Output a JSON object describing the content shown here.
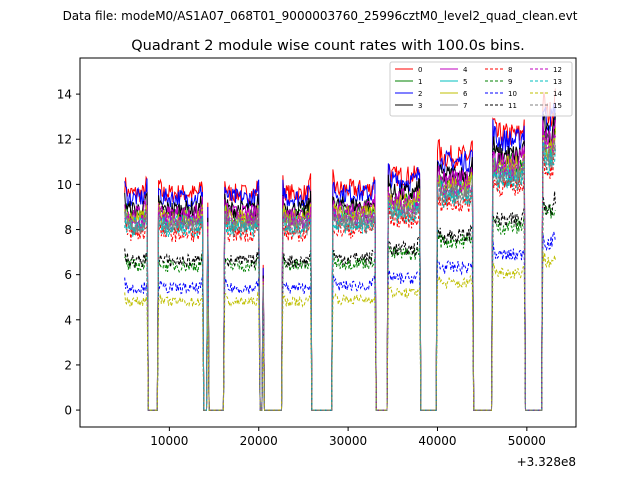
{
  "chart_data": {
    "type": "line",
    "suptitle": "Data file: modeM0/AS1A07_068T01_9000003760_25996cztM0_level2_quad_clean.evt",
    "title": "Quadrant 2 module wise count rates with 100.0s bins.",
    "xlabel": "",
    "ylabel": "",
    "x_offset_label": "+3.328e8",
    "xlim": [
      0,
      55500
    ],
    "ylim": [
      -0.75,
      15.6
    ],
    "xticks": [
      10000,
      20000,
      30000,
      40000,
      50000
    ],
    "xtick_labels": [
      "10000",
      "20000",
      "30000",
      "40000",
      "50000"
    ],
    "yticks": [
      0,
      2,
      4,
      6,
      8,
      10,
      12,
      14
    ],
    "ytick_labels": [
      "0",
      "2",
      "4",
      "6",
      "8",
      "10",
      "12",
      "14"
    ],
    "orbit_segments": [
      [
        5000,
        7500
      ],
      [
        8800,
        13700
      ],
      [
        16200,
        20000
      ],
      [
        22700,
        25800
      ],
      [
        28300,
        33000
      ],
      [
        34500,
        38000
      ],
      [
        40000,
        43900
      ],
      [
        46200,
        49700
      ],
      [
        51800,
        53200
      ]
    ],
    "spikes": [
      [
        14300,
        9.0
      ],
      [
        20500,
        6.3
      ]
    ],
    "segment_level_factors": [
      1.0,
      1.0,
      1.0,
      1.0,
      1.02,
      1.08,
      1.17,
      1.27,
      1.37
    ],
    "legend": {
      "placement": "top-right",
      "columns": 4
    },
    "series": [
      {
        "name": "0",
        "base": 9.6,
        "color": "#ff0000",
        "dash": "solid"
      },
      {
        "name": "1",
        "base": 8.6,
        "color": "#008000",
        "dash": "solid"
      },
      {
        "name": "2",
        "base": 9.4,
        "color": "#0000ff",
        "dash": "solid"
      },
      {
        "name": "3",
        "base": 8.9,
        "color": "#000000",
        "dash": "solid"
      },
      {
        "name": "4",
        "base": 8.7,
        "color": "#bf00bf",
        "dash": "solid"
      },
      {
        "name": "5",
        "base": 8.3,
        "color": "#00bfbf",
        "dash": "solid"
      },
      {
        "name": "6",
        "base": 8.5,
        "color": "#bfbf00",
        "dash": "solid"
      },
      {
        "name": "7",
        "base": 8.1,
        "color": "#808080",
        "dash": "solid"
      },
      {
        "name": "8",
        "base": 7.8,
        "color": "#ff0000",
        "dash": "dashed"
      },
      {
        "name": "9",
        "base": 6.4,
        "color": "#008000",
        "dash": "dashed"
      },
      {
        "name": "10",
        "base": 5.4,
        "color": "#0000ff",
        "dash": "dashed"
      },
      {
        "name": "11",
        "base": 6.6,
        "color": "#000000",
        "dash": "dashed"
      },
      {
        "name": "12",
        "base": 8.4,
        "color": "#bf00bf",
        "dash": "dashed"
      },
      {
        "name": "13",
        "base": 8.0,
        "color": "#00bfbf",
        "dash": "dashed"
      },
      {
        "name": "14",
        "base": 4.8,
        "color": "#bfbf00",
        "dash": "dashed"
      },
      {
        "name": "15",
        "base": 8.2,
        "color": "#808080",
        "dash": "dashed"
      }
    ]
  }
}
